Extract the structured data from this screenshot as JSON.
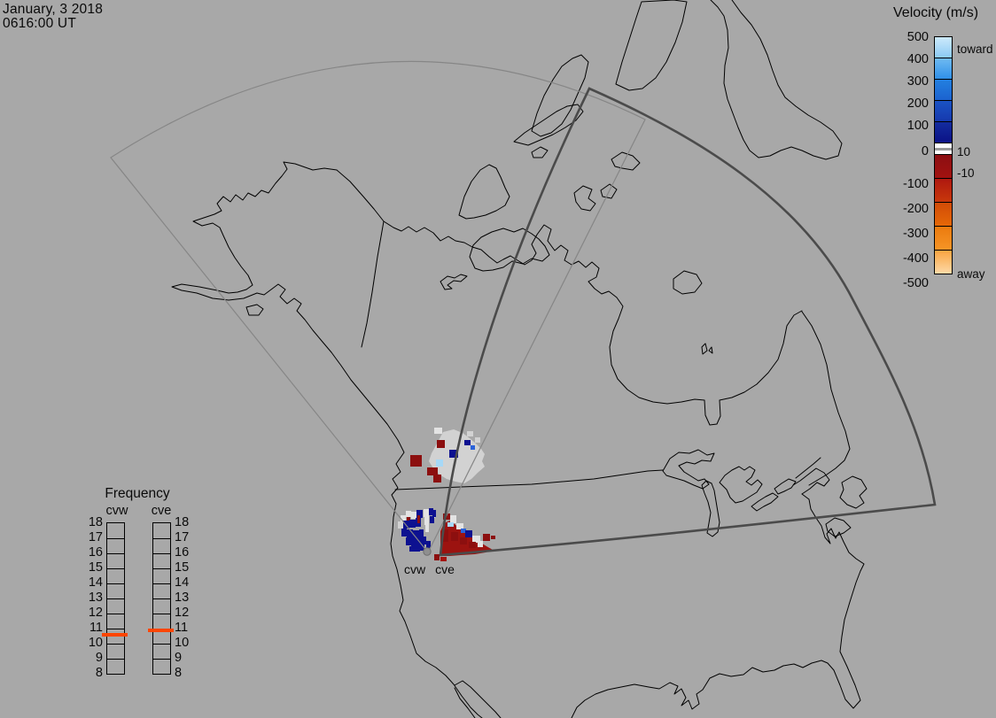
{
  "header": {
    "date_line": "January, 3 2018",
    "time_line": "0616:00 UT"
  },
  "velocity_legend": {
    "title": "Velocity (m/s)",
    "toward_label": "toward",
    "away_label": "away",
    "threshold_upper": "10",
    "threshold_lower": "-10",
    "ticks": [
      500,
      400,
      300,
      200,
      100,
      0,
      -100,
      -200,
      -300,
      -400,
      -500
    ],
    "segments_toward": [
      [
        "#cdeafb",
        "#8bcaf4"
      ],
      [
        "#6fbbf2",
        "#2f8fe8"
      ],
      [
        "#2380e0",
        "#1b62cf"
      ],
      [
        "#1a53c5",
        "#1639ae"
      ],
      [
        "#132c9f",
        "#0b1286"
      ]
    ],
    "segments_away": [
      [
        "#8c0e12",
        "#a21210"
      ],
      [
        "#ae1810",
        "#c8380b"
      ],
      [
        "#d24b07",
        "#e56807"
      ],
      [
        "#eb7a0e",
        "#f69426"
      ],
      [
        "#f9a441",
        "#fdd9a7"
      ]
    ],
    "band_color": "#ffffff"
  },
  "frequency_legend": {
    "title": "Frequency",
    "ticks": [
      18,
      17,
      16,
      15,
      14,
      13,
      12,
      11,
      10,
      9,
      8
    ],
    "marker_color": "#ff4500",
    "scales": [
      {
        "name": "cvw",
        "marker_value": 10.55
      },
      {
        "name": "cve",
        "marker_value": 10.8
      }
    ]
  },
  "radar_sites": [
    {
      "code": "cvw"
    },
    {
      "code": "cve"
    }
  ],
  "map_overlay": {
    "cell_colors": {
      "N": "#0d1190",
      "B": "#2b62d9",
      "LB": "#a6d8f7",
      "R": "#8c0f0f",
      "R2": "#a51410",
      "W": "#e3e3e3",
      "G": "#d2d2d2"
    },
    "wedge_fill": "#9c1310",
    "wedge_points": "497,628 497,600 501,591 508,588 513,592 519,597 526,602 533,607 541,612 549,617 556,621 548,624 536,626 520,627 508,628",
    "scatter_cells": [
      [
        490,
        483,
        9,
        7,
        "W"
      ],
      [
        527,
        487,
        7,
        6,
        "G"
      ],
      [
        536,
        494,
        6,
        6,
        "G"
      ],
      [
        493,
        497,
        9,
        9,
        "R"
      ],
      [
        463,
        514,
        13,
        13,
        "R"
      ],
      [
        482,
        528,
        12,
        9,
        "R"
      ],
      [
        489,
        536,
        9,
        9,
        "R"
      ],
      [
        507,
        508,
        10,
        9,
        "N"
      ],
      [
        524,
        497,
        7,
        6,
        "N"
      ],
      [
        531,
        503,
        5,
        5,
        "B"
      ],
      [
        492,
        519,
        8,
        8,
        "LB"
      ]
    ],
    "scatter_blob": "500,488 512,485 522,489 530,495 537,501 543,507 547,513 544,521 547,527 539,534 532,541 524,546 514,544 504,541 496,536 489,529 484,521 487,512 492,503",
    "scatter_fill": "#d2d2d2",
    "cvw_cells": [
      [
        452,
        582,
        6,
        8,
        "W"
      ],
      [
        458,
        577,
        6,
        7,
        "W"
      ],
      [
        464,
        578,
        6,
        8,
        "W"
      ],
      [
        459,
        584,
        4,
        11,
        "R"
      ],
      [
        449,
        589,
        6,
        8,
        "G"
      ],
      [
        455,
        588,
        7,
        9,
        "N"
      ],
      [
        462,
        587,
        7,
        9,
        "N"
      ],
      [
        469,
        585,
        6,
        10,
        "N"
      ],
      [
        470,
        576,
        7,
        9,
        "N"
      ],
      [
        471,
        582,
        3,
        9,
        "R"
      ],
      [
        478,
        575,
        6,
        9,
        "W"
      ],
      [
        484,
        574,
        5,
        8,
        "N"
      ],
      [
        479,
        584,
        5,
        9,
        "W"
      ],
      [
        485,
        583,
        5,
        8,
        "N"
      ],
      [
        488,
        576,
        4,
        8,
        "N"
      ],
      [
        453,
        597,
        6,
        9,
        "N"
      ],
      [
        459,
        598,
        7,
        10,
        "N"
      ],
      [
        466,
        599,
        7,
        10,
        "N"
      ],
      [
        473,
        598,
        5,
        10,
        "N"
      ],
      [
        480,
        593,
        4,
        8,
        "W"
      ],
      [
        458,
        607,
        6,
        9,
        "N"
      ],
      [
        464,
        608,
        7,
        9,
        "N"
      ],
      [
        471,
        608,
        6,
        9,
        "N"
      ],
      [
        477,
        606,
        4,
        9,
        "N"
      ],
      [
        462,
        617,
        6,
        6,
        "N"
      ],
      [
        468,
        617,
        6,
        6,
        "N"
      ],
      [
        474,
        615,
        5,
        7,
        "N"
      ],
      [
        481,
        611,
        5,
        8,
        "N"
      ]
    ],
    "cve_cells": [
      [
        500,
        580,
        8,
        7,
        "R"
      ],
      [
        488,
        580,
        3,
        5,
        "W"
      ],
      [
        508,
        582,
        7,
        9,
        "W"
      ],
      [
        505,
        590,
        7,
        5,
        "LB"
      ],
      [
        515,
        591,
        8,
        7,
        "W"
      ],
      [
        520,
        597,
        6,
        5,
        "B"
      ],
      [
        525,
        599,
        8,
        8,
        "N"
      ],
      [
        533,
        605,
        9,
        8,
        "W"
      ],
      [
        539,
        611,
        6,
        7,
        "W"
      ],
      [
        545,
        603,
        8,
        8,
        "R"
      ],
      [
        554,
        605,
        5,
        4,
        "R"
      ],
      [
        500,
        598,
        6,
        14,
        "R"
      ],
      [
        509,
        601,
        8,
        10,
        "R"
      ],
      [
        519,
        607,
        8,
        8,
        "R"
      ],
      [
        529,
        612,
        8,
        7,
        "R"
      ],
      [
        490,
        626,
        6,
        7,
        "R"
      ],
      [
        497,
        629,
        7,
        5,
        "R2"
      ]
    ]
  }
}
